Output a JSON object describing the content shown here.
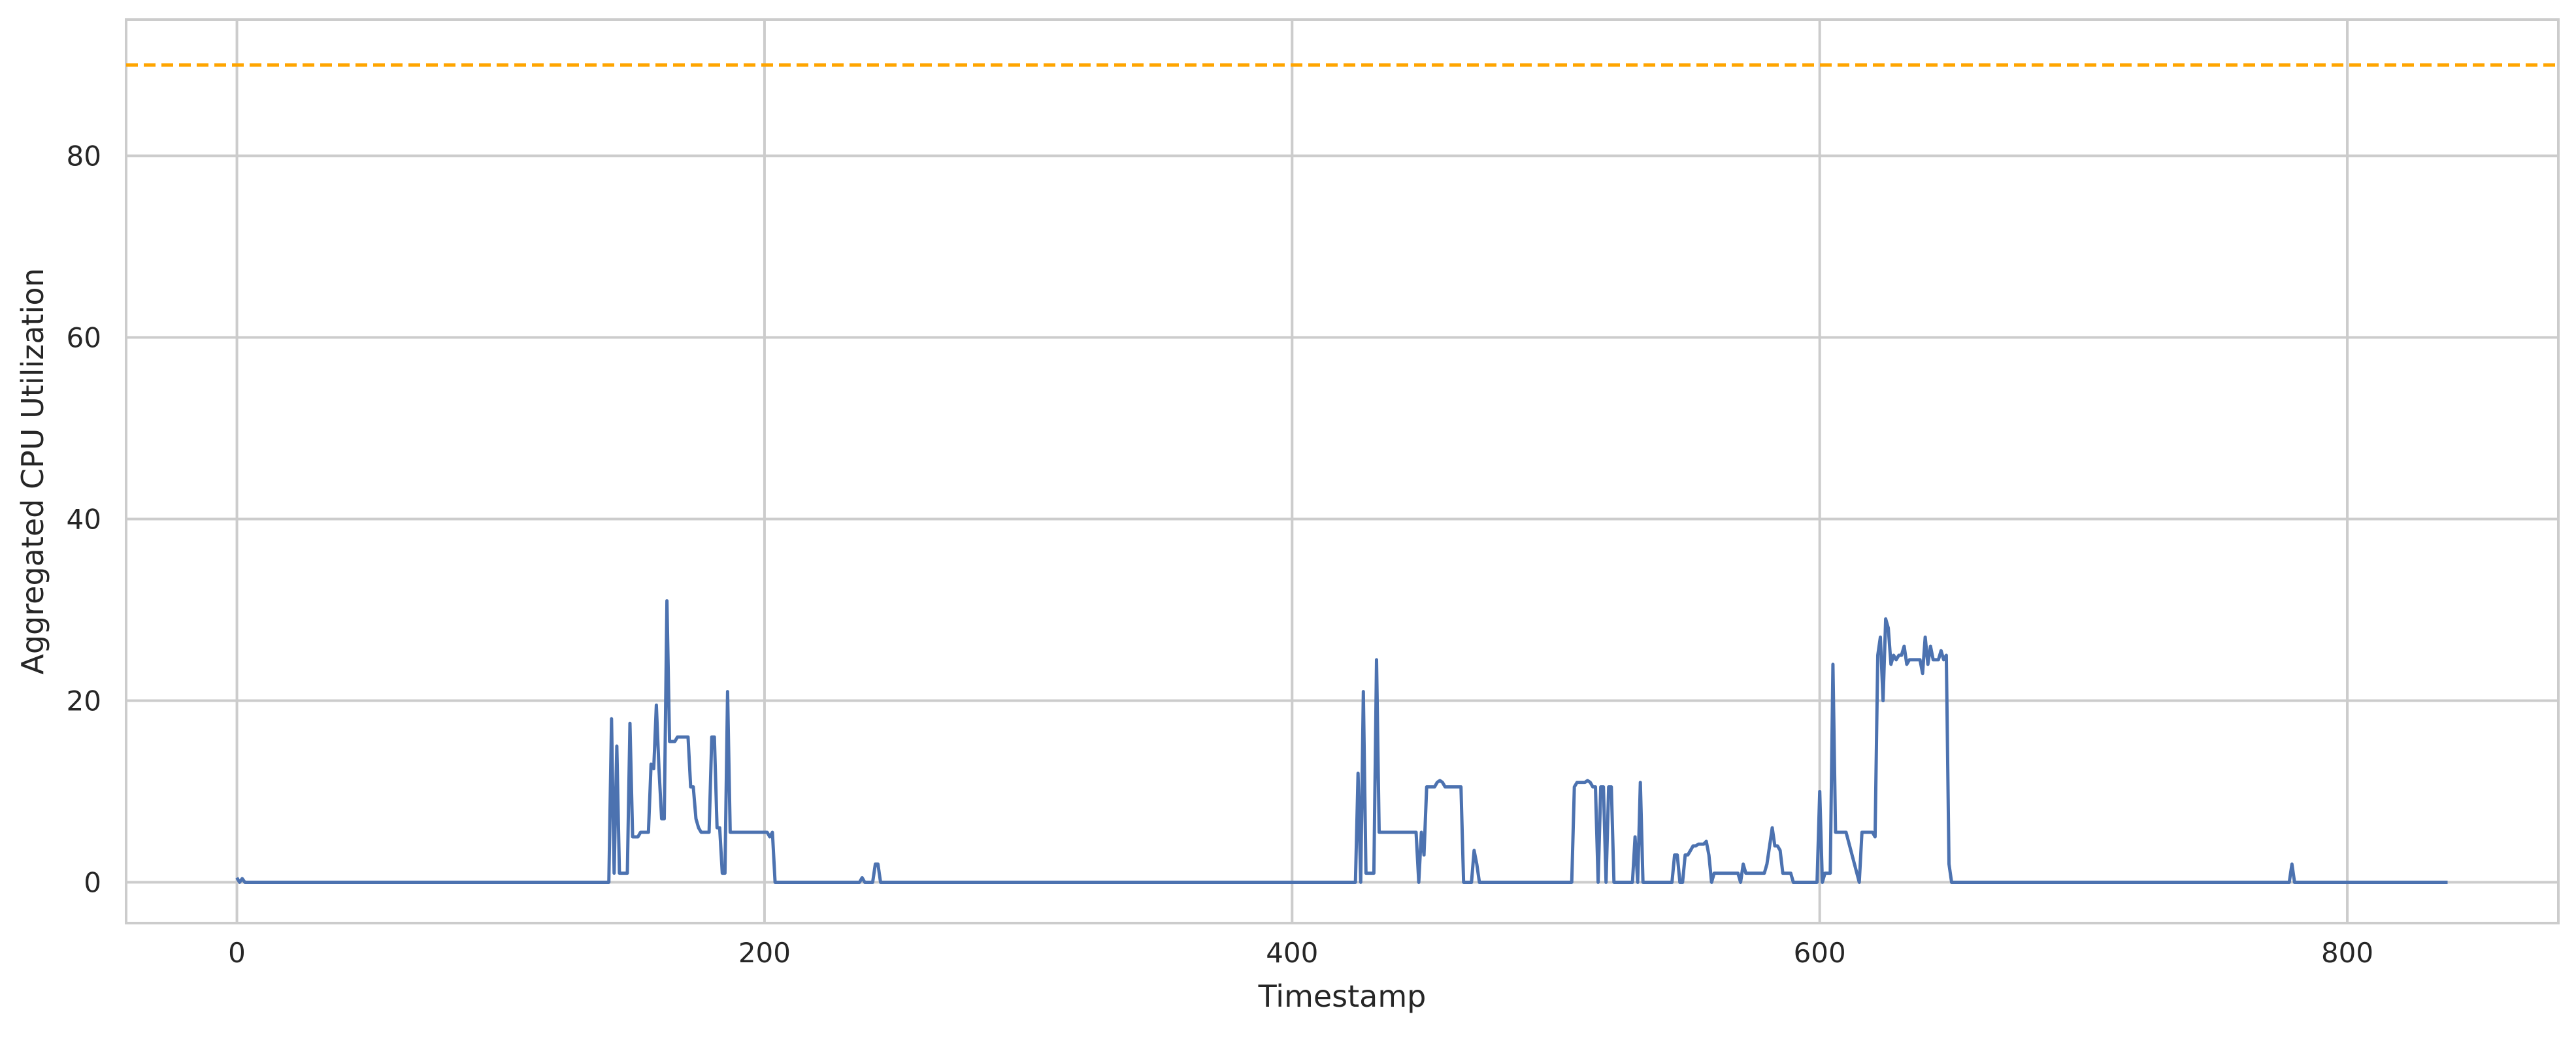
{
  "chart_data": {
    "type": "line",
    "title": "",
    "xlabel": "Timestamp",
    "ylabel": "Aggregated CPU Utilization",
    "xlim": [
      -42,
      880
    ],
    "ylim": [
      -4.5,
      95
    ],
    "xticks": [
      0,
      200,
      400,
      600,
      800
    ],
    "yticks": [
      0,
      20,
      40,
      60,
      80
    ],
    "xtick_labels": [
      "0",
      "200",
      "400",
      "600",
      "800"
    ],
    "ytick_labels": [
      "0",
      "20",
      "40",
      "60",
      "80"
    ],
    "grid": true,
    "threshold": {
      "y": 90,
      "color": "#ffa500",
      "style": "dashed"
    },
    "series": [
      {
        "color": "#4c72b0",
        "x": [
          0,
          1,
          2,
          3,
          4,
          5,
          140,
          141,
          142,
          143,
          144,
          145,
          146,
          147,
          148,
          149,
          150,
          151,
          152,
          153,
          154,
          155,
          156,
          157,
          158,
          159,
          160,
          161,
          162,
          163,
          164,
          165,
          166,
          167,
          168,
          169,
          170,
          171,
          172,
          173,
          174,
          175,
          176,
          177,
          178,
          179,
          180,
          181,
          182,
          183,
          184,
          185,
          186,
          187,
          188,
          190,
          195,
          198,
          200,
          201,
          202,
          203,
          204,
          205,
          236,
          237,
          238,
          240,
          241,
          242,
          243,
          244,
          245,
          246,
          250,
          400,
          424,
          425,
          426,
          427,
          428,
          429,
          430,
          431,
          432,
          433,
          434,
          435,
          440,
          445,
          447,
          448,
          449,
          450,
          451,
          452,
          453,
          454,
          455,
          456,
          457,
          458,
          459,
          460,
          461,
          462,
          463,
          464,
          465,
          466,
          467,
          468,
          469,
          470,
          471,
          472,
          473,
          500,
          506,
          507,
          508,
          509,
          510,
          511,
          512,
          513,
          514,
          515,
          516,
          517,
          518,
          519,
          520,
          521,
          522,
          529,
          530,
          531,
          532,
          533,
          534,
          535,
          536,
          537,
          544,
          545,
          546,
          547,
          548,
          549,
          550,
          551,
          552,
          553,
          554,
          555,
          556,
          557,
          558,
          559,
          560,
          561,
          562,
          563,
          564,
          565,
          566,
          567,
          568,
          569,
          570,
          571,
          572,
          573,
          574,
          575,
          576,
          577,
          578,
          579,
          580,
          581,
          582,
          583,
          584,
          585,
          586,
          587,
          588,
          589,
          590,
          597,
          598,
          599,
          600,
          601,
          602,
          603,
          604,
          605,
          606,
          607,
          608,
          610,
          615,
          616,
          617,
          618,
          619,
          620,
          621,
          622,
          623,
          624,
          625,
          626,
          627,
          628,
          629,
          630,
          631,
          632,
          633,
          634,
          635,
          636,
          637,
          638,
          639,
          640,
          641,
          642,
          643,
          644,
          645,
          646,
          647,
          648,
          649,
          650,
          660,
          700,
          778,
          779,
          780,
          781,
          782,
          783,
          784,
          800,
          838
        ],
        "y": [
          0.5,
          0,
          0.4,
          0,
          0,
          0,
          0,
          0,
          18,
          1,
          15,
          1,
          1,
          1,
          1,
          17.5,
          5,
          5,
          5,
          5.5,
          5.5,
          5.5,
          5.5,
          13,
          12.5,
          19.5,
          12.5,
          7,
          7,
          31,
          15.5,
          15.5,
          15.5,
          16,
          16,
          16,
          16,
          16,
          10.5,
          10.5,
          7,
          6,
          5.5,
          5.5,
          5.5,
          5.5,
          16,
          16,
          6,
          6,
          1,
          1,
          21,
          5.5,
          5.5,
          5.5,
          5.5,
          5.5,
          5.5,
          5.5,
          5,
          5.5,
          0,
          0,
          0,
          0.5,
          0,
          0,
          0,
          2,
          2,
          0,
          0,
          0,
          0,
          0,
          0,
          12,
          0,
          21,
          1,
          1,
          1,
          1,
          24.5,
          5.5,
          5.5,
          5.5,
          5.5,
          5.5,
          5.5,
          0,
          5.5,
          3,
          10.5,
          10.5,
          10.5,
          10.5,
          11,
          11.2,
          11,
          10.5,
          10.5,
          10.5,
          10.5,
          10.5,
          10.5,
          10.5,
          0,
          0,
          0,
          0,
          3.5,
          2,
          0,
          0,
          0,
          0,
          0,
          10.5,
          11,
          11,
          11,
          11,
          11.2,
          11,
          10.5,
          10.5,
          0,
          10.5,
          10.5,
          0,
          10.5,
          10.5,
          0,
          0,
          5,
          0,
          11,
          0,
          0,
          0,
          0,
          0,
          0,
          3,
          3,
          0,
          0,
          3,
          3,
          3.5,
          4,
          4,
          4.2,
          4.2,
          4.2,
          4.5,
          3,
          0,
          1,
          1,
          1,
          1,
          1,
          1,
          1,
          1,
          1,
          1,
          0,
          2,
          1,
          1,
          1,
          1,
          1,
          1,
          1,
          1,
          2,
          4,
          6,
          4,
          4,
          3.5,
          1,
          1,
          1,
          1,
          0,
          0,
          0,
          0,
          10,
          0,
          1,
          1,
          1,
          24,
          5.5,
          5.5,
          5.5,
          5.5,
          0,
          5.5,
          5.5,
          5.5,
          5.5,
          5.5,
          5,
          25,
          27,
          20,
          29,
          28,
          24,
          25,
          24.5,
          25,
          25,
          26,
          24,
          24.5,
          24.5,
          24.5,
          24.5,
          24.5,
          23,
          27,
          24,
          26,
          24.5,
          24.5,
          24.5,
          25.5,
          24.5,
          25,
          2,
          0,
          0,
          0,
          0,
          2,
          0,
          0,
          0,
          0,
          0,
          0,
          0
        ]
      }
    ]
  }
}
